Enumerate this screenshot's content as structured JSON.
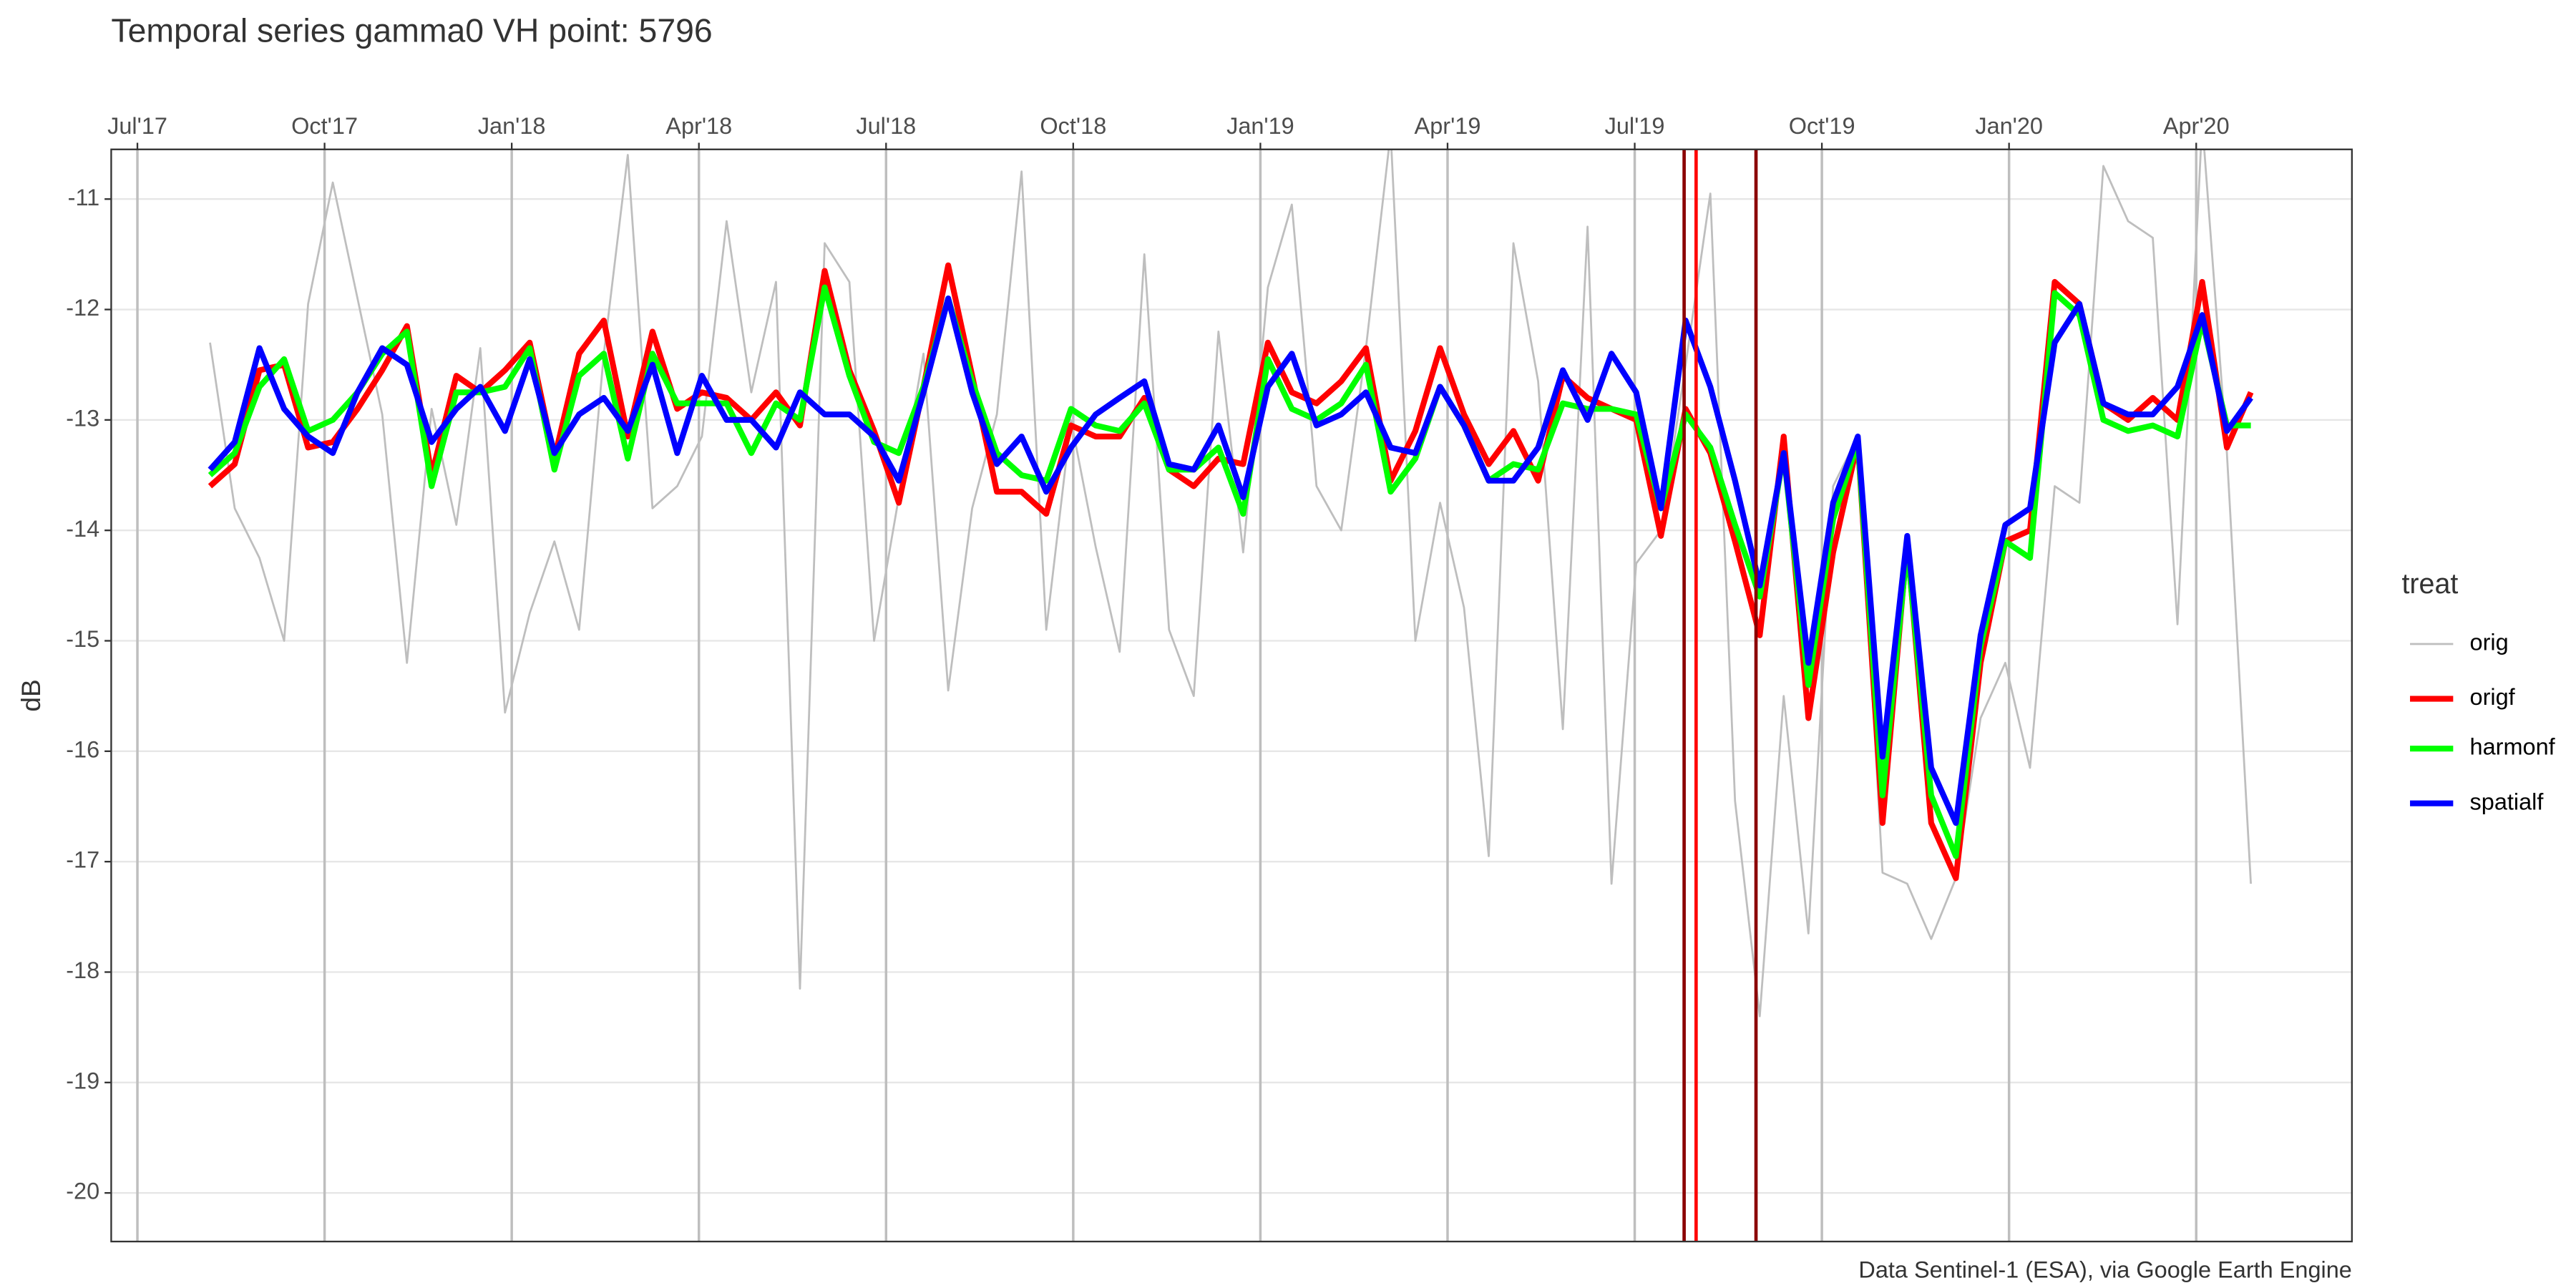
{
  "chart_data": {
    "type": "line",
    "title": "Temporal series gamma0 VH point: 5796",
    "ylabel": "dB",
    "caption": "Data Sentinel-1 (ESA), via Google Earth Engine",
    "legend_title": "treat",
    "legend": "right",
    "grid": true,
    "x_axis_position": "top",
    "xlim": [
      2017.465,
      2020.458
    ],
    "ylim": [
      -20.44,
      -10.55
    ],
    "xticks": [
      {
        "value": 2017.5,
        "label": "Jul'17"
      },
      {
        "value": 2017.75,
        "label": "Oct'17"
      },
      {
        "value": 2018.0,
        "label": "Jan'18"
      },
      {
        "value": 2018.25,
        "label": "Apr'18"
      },
      {
        "value": 2018.5,
        "label": "Jul'18"
      },
      {
        "value": 2018.75,
        "label": "Oct'18"
      },
      {
        "value": 2019.0,
        "label": "Jan'19"
      },
      {
        "value": 2019.25,
        "label": "Apr'19"
      },
      {
        "value": 2019.5,
        "label": "Jul'19"
      },
      {
        "value": 2019.75,
        "label": "Oct'19"
      },
      {
        "value": 2020.0,
        "label": "Jan'20"
      },
      {
        "value": 2020.25,
        "label": "Apr'20"
      }
    ],
    "yticks": [
      -11,
      -12,
      -13,
      -14,
      -15,
      -16,
      -17,
      -18,
      -19,
      -20
    ],
    "vlines": [
      {
        "x": 2019.566,
        "color": "#8b0000"
      },
      {
        "x": 2019.582,
        "color": "#ff0000"
      },
      {
        "x": 2019.662,
        "color": "#8b0000"
      }
    ],
    "x": [
      2017.597,
      2017.63,
      2017.663,
      2017.696,
      2017.728,
      2017.761,
      2017.794,
      2017.827,
      2017.86,
      2017.893,
      2017.926,
      2017.958,
      2017.991,
      2018.024,
      2018.057,
      2018.09,
      2018.123,
      2018.155,
      2018.188,
      2018.221,
      2018.254,
      2018.287,
      2018.32,
      2018.353,
      2018.385,
      2018.418,
      2018.451,
      2018.484,
      2018.517,
      2018.55,
      2018.583,
      2018.615,
      2018.648,
      2018.681,
      2018.714,
      2018.747,
      2018.78,
      2018.812,
      2018.845,
      2018.878,
      2018.911,
      2018.944,
      2018.977,
      2019.01,
      2019.042,
      2019.075,
      2019.108,
      2019.141,
      2019.174,
      2019.207,
      2019.24,
      2019.272,
      2019.305,
      2019.338,
      2019.371,
      2019.404,
      2019.437,
      2019.469,
      2019.502,
      2019.535,
      2019.568,
      2019.601,
      2019.634,
      2019.667,
      2019.699,
      2019.732,
      2019.765,
      2019.798,
      2019.831,
      2019.864,
      2019.896,
      2019.929,
      2019.962,
      2019.995,
      2020.028,
      2020.061,
      2020.094,
      2020.126,
      2020.159,
      2020.192,
      2020.225,
      2020.258,
      2020.291,
      2020.323
    ],
    "series": [
      {
        "name": "orig",
        "color": "#bebebe",
        "linewidth": 1.2,
        "values": [
          -12.3,
          -13.8,
          -14.25,
          -15.0,
          -11.95,
          -10.85,
          -11.9,
          -12.95,
          -15.2,
          -12.9,
          -13.95,
          -12.35,
          -15.65,
          -14.75,
          -14.1,
          -14.9,
          -12.4,
          -10.6,
          -13.8,
          -13.6,
          -13.15,
          -11.2,
          -12.75,
          -11.75,
          -18.15,
          -11.4,
          -11.75,
          -15.0,
          -13.7,
          -12.4,
          -15.45,
          -13.8,
          -12.95,
          -10.75,
          -14.9,
          -13.0,
          -14.15,
          -15.1,
          -11.5,
          -14.9,
          -15.5,
          -12.2,
          -14.2,
          -11.8,
          -11.05,
          -13.6,
          -14.0,
          -12.35,
          -10.4,
          -15.0,
          -13.75,
          -14.7,
          -16.95,
          -11.4,
          -12.65,
          -15.8,
          -11.25,
          -17.2,
          -14.3,
          -14.0,
          -12.5,
          -10.95,
          -16.45,
          -18.4,
          -15.5,
          -17.65,
          -13.6,
          -13.15,
          -17.1,
          -17.2,
          -17.7,
          -17.15,
          -15.7,
          -15.2,
          -16.15,
          -13.6,
          -13.75,
          -10.7,
          -11.2,
          -11.35,
          -14.85,
          -10.3,
          -13.3,
          -17.2
        ]
      },
      {
        "name": "origf",
        "color": "#ff0000",
        "linewidth": 3.5,
        "values": [
          -13.6,
          -13.4,
          -12.55,
          -12.5,
          -13.25,
          -13.2,
          -12.9,
          -12.55,
          -12.15,
          -13.5,
          -12.6,
          -12.75,
          -12.55,
          -12.3,
          -13.35,
          -12.4,
          -12.1,
          -13.15,
          -12.2,
          -12.9,
          -12.75,
          -12.8,
          -13.0,
          -12.75,
          -13.05,
          -11.65,
          -12.55,
          -13.1,
          -13.75,
          -12.7,
          -11.6,
          -12.6,
          -13.65,
          -13.65,
          -13.85,
          -13.05,
          -13.15,
          -13.15,
          -12.8,
          -13.45,
          -13.6,
          -13.35,
          -13.4,
          -12.3,
          -12.75,
          -12.85,
          -12.65,
          -12.35,
          -13.55,
          -13.1,
          -12.35,
          -12.95,
          -13.4,
          -13.1,
          -13.55,
          -12.6,
          -12.8,
          -12.9,
          -13.0,
          -14.05,
          -12.9,
          -13.3,
          -14.1,
          -14.95,
          -13.15,
          -15.7,
          -14.2,
          -13.2,
          -16.65,
          -14.1,
          -16.65,
          -17.15,
          -15.2,
          -14.1,
          -14.0,
          -11.75,
          -11.95,
          -12.85,
          -13.0,
          -12.8,
          -13.0,
          -11.75,
          -13.25,
          -12.75
        ]
      },
      {
        "name": "harmonf",
        "color": "#00ff00",
        "linewidth": 3.5,
        "values": [
          -13.5,
          -13.3,
          -12.7,
          -12.45,
          -13.1,
          -13.0,
          -12.75,
          -12.4,
          -12.2,
          -13.6,
          -12.75,
          -12.75,
          -12.7,
          -12.35,
          -13.45,
          -12.6,
          -12.4,
          -13.35,
          -12.4,
          -12.85,
          -12.85,
          -12.85,
          -13.3,
          -12.85,
          -13.0,
          -11.8,
          -12.6,
          -13.2,
          -13.3,
          -12.7,
          -11.9,
          -12.65,
          -13.3,
          -13.5,
          -13.55,
          -12.9,
          -13.05,
          -13.1,
          -12.85,
          -13.45,
          -13.45,
          -13.25,
          -13.85,
          -12.45,
          -12.9,
          -13.0,
          -12.85,
          -12.5,
          -13.65,
          -13.35,
          -12.7,
          -13.05,
          -13.55,
          -13.4,
          -13.45,
          -12.85,
          -12.9,
          -12.9,
          -12.95,
          -13.8,
          -12.95,
          -13.25,
          -13.95,
          -14.6,
          -13.3,
          -15.4,
          -13.9,
          -13.2,
          -16.4,
          -14.15,
          -16.4,
          -16.95,
          -15.05,
          -14.1,
          -14.25,
          -11.85,
          -12.05,
          -13.0,
          -13.1,
          -13.05,
          -13.15,
          -12.1,
          -13.05,
          -13.05
        ]
      },
      {
        "name": "spatialf",
        "color": "#0000ff",
        "linewidth": 3.5,
        "values": [
          -13.45,
          -13.2,
          -12.35,
          -12.9,
          -13.15,
          -13.3,
          -12.75,
          -12.35,
          -12.5,
          -13.2,
          -12.9,
          -12.7,
          -13.1,
          -12.45,
          -13.3,
          -12.95,
          -12.8,
          -13.1,
          -12.5,
          -13.3,
          -12.6,
          -13.0,
          -13.0,
          -13.25,
          -12.75,
          -12.95,
          -12.95,
          -13.15,
          -13.55,
          -12.75,
          -11.9,
          -12.75,
          -13.4,
          -13.15,
          -13.65,
          -13.25,
          -12.95,
          -12.8,
          -12.65,
          -13.4,
          -13.45,
          -13.05,
          -13.7,
          -12.7,
          -12.4,
          -13.05,
          -12.95,
          -12.75,
          -13.25,
          -13.3,
          -12.7,
          -13.05,
          -13.55,
          -13.55,
          -13.25,
          -12.55,
          -13.0,
          -12.4,
          -12.75,
          -13.8,
          -12.1,
          -12.7,
          -13.55,
          -14.5,
          -13.3,
          -15.2,
          -13.75,
          -13.15,
          -16.05,
          -14.05,
          -16.15,
          -16.65,
          -14.95,
          -13.95,
          -13.8,
          -12.3,
          -11.95,
          -12.85,
          -12.95,
          -12.95,
          -12.7,
          -12.05,
          -13.1,
          -12.8
        ]
      }
    ]
  }
}
